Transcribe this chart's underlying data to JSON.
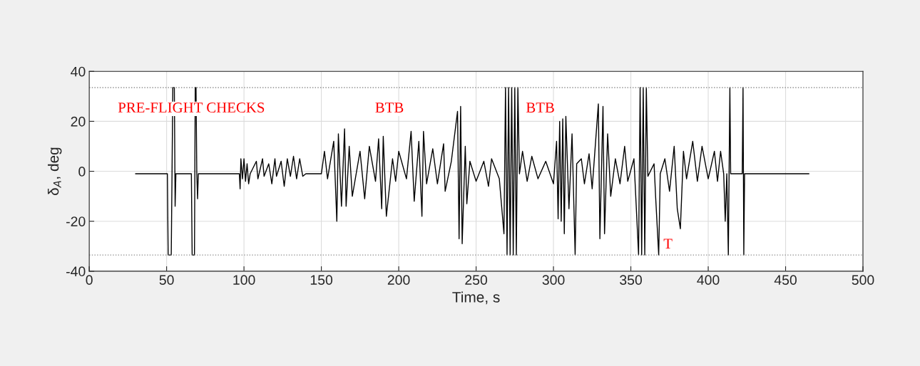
{
  "chart_data": {
    "type": "line",
    "xlabel": "Time, s",
    "ylabel": "δ$_{A}$, deg",
    "xlim": [
      0,
      500
    ],
    "xticks": [
      0,
      50,
      100,
      150,
      200,
      250,
      300,
      350,
      400,
      450,
      500
    ],
    "ylim": [
      -40,
      40
    ],
    "yticks": [
      -40,
      -20,
      0,
      20,
      40
    ],
    "grid": true,
    "line_style": "solid",
    "marker": "none",
    "series": [
      {
        "color": "#000000",
        "x": [
          30,
          50.5,
          51,
          53,
          53.5,
          54,
          55,
          55.5,
          56,
          66,
          66.5,
          68,
          68.5,
          69,
          69.5,
          70,
          70.5,
          97,
          97.5,
          98,
          99,
          100,
          101,
          102,
          103,
          104,
          108,
          109,
          112,
          113,
          116,
          118,
          120,
          121,
          124,
          126,
          128,
          130,
          132,
          134,
          136,
          138,
          140,
          150,
          152,
          154,
          158,
          160,
          161,
          163,
          165,
          166,
          168,
          170,
          175,
          178,
          181,
          185,
          187,
          189,
          190,
          192,
          196,
          198,
          200,
          205,
          208,
          210,
          213,
          215,
          216,
          218,
          222,
          225,
          229,
          230,
          234,
          238,
          239,
          240,
          241,
          243,
          244,
          246,
          250,
          255,
          258,
          260,
          265,
          268,
          269,
          270,
          271,
          272,
          273,
          274,
          275,
          276,
          277,
          278,
          280,
          283,
          286,
          290,
          295,
          300,
          302,
          303,
          304,
          305,
          306,
          307,
          308,
          310,
          312,
          314,
          315,
          318,
          320,
          323,
          325,
          329,
          330,
          332,
          333,
          335,
          337,
          340,
          343,
          346,
          348,
          352,
          355,
          356,
          357,
          358,
          359,
          360,
          361,
          365,
          366,
          368,
          369,
          372,
          375,
          378,
          380,
          382,
          384,
          386,
          390,
          393,
          396,
          400,
          404,
          406,
          408,
          410,
          411,
          412,
          413,
          414,
          414.5,
          422,
          422.5,
          423,
          423.5,
          465
        ],
        "values": [
          -1,
          -1,
          -33.5,
          -33.5,
          -1,
          33.5,
          33.5,
          -14,
          -1,
          -1,
          -33.5,
          -33.5,
          33.5,
          33.5,
          -1,
          -11,
          -1,
          -1,
          -7,
          5,
          -3,
          5,
          -4,
          3,
          -5,
          -1,
          4,
          -3,
          5,
          -2,
          3,
          -5,
          5,
          -2,
          4,
          -6,
          5,
          -2,
          6,
          -3,
          5,
          -2,
          -1,
          -1,
          8,
          -3,
          12,
          -20,
          15,
          -14,
          17,
          -14,
          10,
          -10,
          8,
          -11,
          10,
          -4,
          13,
          -15,
          14,
          -18,
          5,
          -4,
          8,
          -3,
          16,
          -12,
          12,
          -18,
          16,
          -5,
          9,
          -5,
          11,
          -8,
          4,
          24,
          -27,
          26,
          -29,
          10,
          -13,
          4,
          -4,
          4,
          -6,
          5,
          -3,
          -25,
          33.5,
          -33.5,
          33.5,
          -33.5,
          33.5,
          -33.5,
          33.5,
          -33.5,
          33.5,
          -1,
          8,
          -4,
          6,
          -3,
          4,
          -5,
          12,
          -19,
          20,
          -20,
          21,
          -25,
          22,
          -15,
          15,
          -33.5,
          3,
          5,
          -5,
          7,
          -7,
          27,
          -27,
          26,
          -25,
          15,
          -10,
          5,
          -5,
          10,
          -4,
          5,
          -33.5,
          33.5,
          -33.5,
          33.5,
          -33.5,
          33.5,
          -2,
          3,
          -10,
          -33.5,
          -1,
          5,
          -8,
          10,
          -15,
          -23,
          8,
          -3,
          12,
          -4,
          10,
          -3,
          8,
          -4,
          8,
          -1,
          -20,
          -1,
          -33.5,
          33.5,
          -1,
          -1,
          33.5,
          -33.5,
          -1,
          -1
        ]
      }
    ],
    "ref_lines": [
      {
        "axis": "y",
        "value": 33.5,
        "color": "#8c8c8c",
        "line_style": "dotted"
      },
      {
        "axis": "y",
        "value": -33.5,
        "color": "#8c8c8c",
        "line_style": "dotted"
      }
    ],
    "annotations": [
      "PRE-FLIGHT CHECKS",
      "BTB",
      "BTB",
      "T"
    ]
  }
}
